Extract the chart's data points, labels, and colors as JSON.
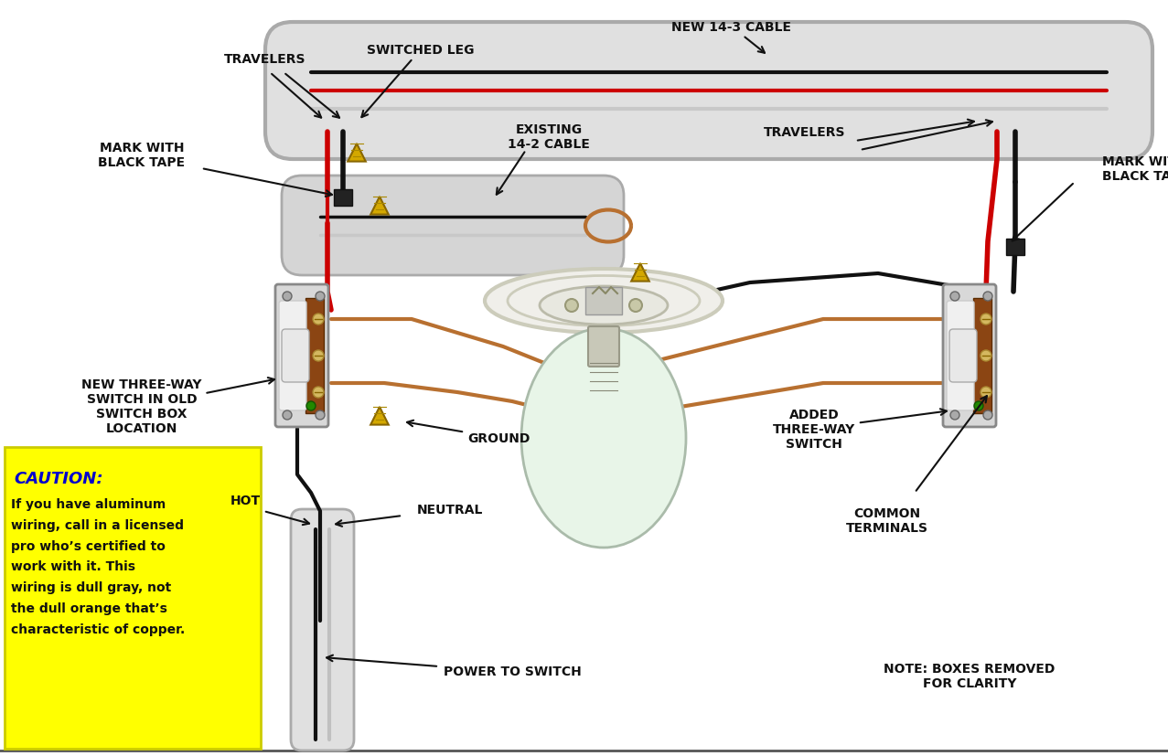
{
  "bg_color": "#ffffff",
  "caution_bg": "#ffff00",
  "caution_title": "CAUTION:",
  "caution_text": "If you have aluminum\nwiring, call in a licensed\npro who’s certified to\nwork with it. This\nwiring is dull gray, not\nthe dull orange that’s\ncharacteristic of copper.",
  "note_text": "NOTE: BOXES REMOVED\nFOR CLARITY",
  "labels": {
    "travelers_left": "TRAVELERS",
    "switched_leg": "SWITCHED LEG",
    "new_cable": "NEW 14-3 CABLE",
    "mark_black_left": "MARK WITH\nBLACK TAPE",
    "existing_cable": "EXISTING\n14-2 CABLE",
    "travelers_right": "TRAVELERS",
    "mark_black_right": "MARK WITH\nBLACK TAPE",
    "new_three_way": "NEW THREE-WAY\nSWITCH IN OLD\nSWITCH BOX\nLOCATION",
    "ground": "GROUND",
    "hot": "HOT",
    "neutral": "NEUTRAL",
    "power_to_switch": "POWER TO SWITCH",
    "added_three_way": "ADDED\nTHREE-WAY\nSWITCH",
    "common_terminals": "COMMON\nTERMINALS"
  },
  "colors": {
    "black_wire": "#111111",
    "red_wire": "#cc0000",
    "white_wire": "#d8d8d8",
    "bare_wire": "#b87030",
    "cable_jacket": "#d8d8d8",
    "wire_nut_yellow": "#d4a800",
    "label_color": "#111111"
  }
}
